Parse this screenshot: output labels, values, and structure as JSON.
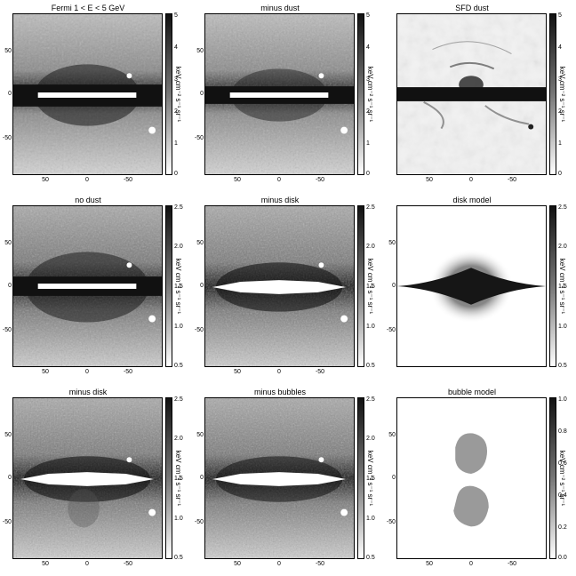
{
  "units": "keV cm⁻² s⁻¹ sr⁻¹",
  "x_ticks": [
    "50",
    "0",
    "-50"
  ],
  "y_ticks": [
    "50",
    "0",
    "-50"
  ],
  "colorbar_ticks_a": [
    "5",
    "4",
    "3",
    "2",
    "1",
    "0"
  ],
  "colorbar_ticks_b": [
    "2.5",
    "2.0",
    "1.5",
    "1.0",
    "0.5"
  ],
  "colorbar_ticks_c": [
    "1.0",
    "0.8",
    "0.6",
    "0.4",
    "0.2",
    "0.0"
  ],
  "panels": [
    {
      "id": "p1",
      "title": "Fermi 1 < E < 5 GeV",
      "scale": "a"
    },
    {
      "id": "p2",
      "title": "minus dust",
      "scale": "a"
    },
    {
      "id": "p3",
      "title": "SFD dust",
      "scale": "a"
    },
    {
      "id": "p4",
      "title": "no dust",
      "scale": "b"
    },
    {
      "id": "p5",
      "title": "minus disk",
      "scale": "b"
    },
    {
      "id": "p6",
      "title": "disk model",
      "scale": "b"
    },
    {
      "id": "p7",
      "title": "minus disk",
      "scale": "b"
    },
    {
      "id": "p8",
      "title": "minus bubbles",
      "scale": "b"
    },
    {
      "id": "p9",
      "title": "bubble model",
      "scale": "c"
    }
  ]
}
